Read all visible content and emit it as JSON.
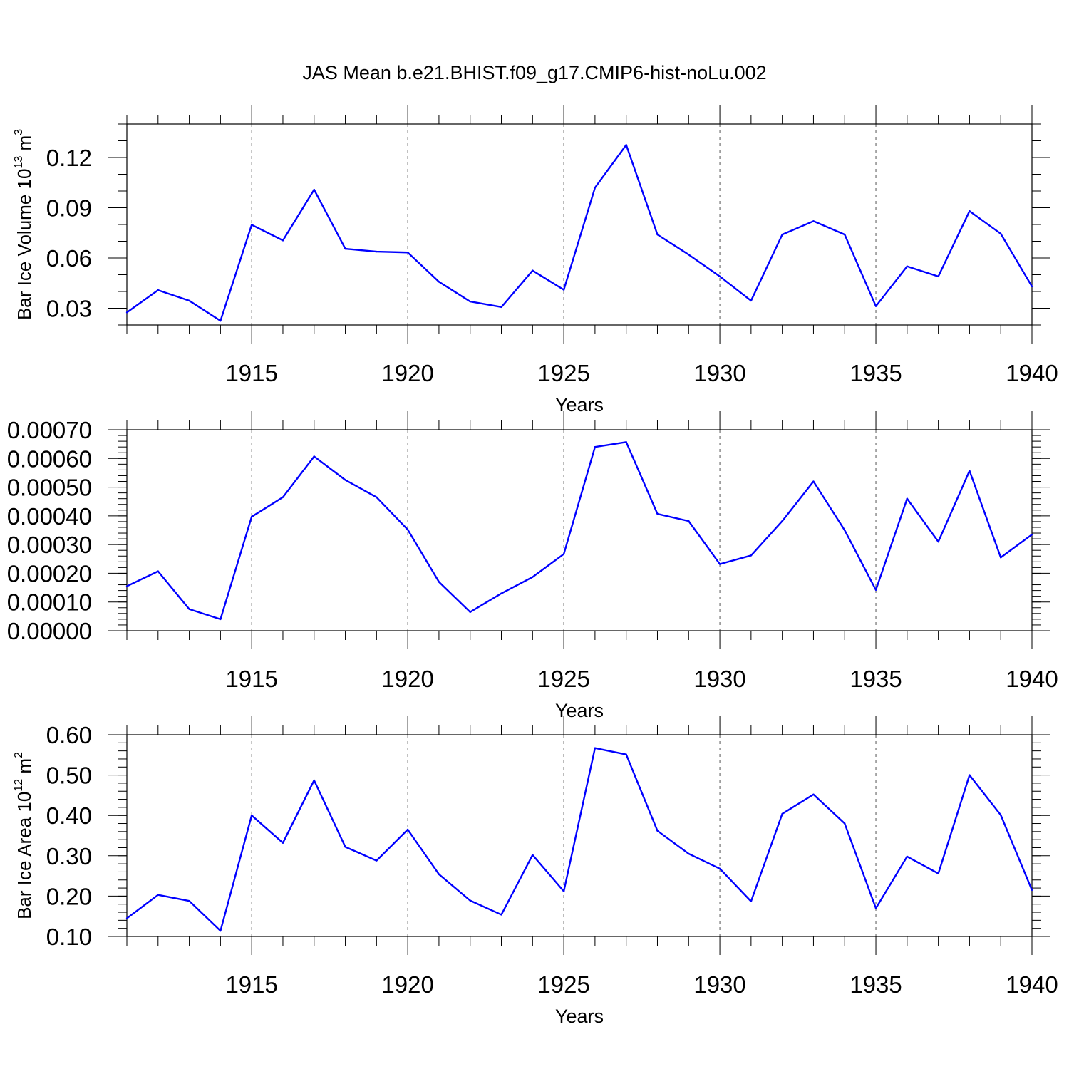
{
  "chart_data": {
    "type": "line",
    "title": "JAS Mean b.e21.BHIST.f09_g17.CMIP6-hist-noLu.002",
    "line_color": "#0000ff",
    "panels": [
      {
        "ylabel_main": "Bar Ice Volume 10",
        "ylabel_exp": "13",
        "ylabel_unit": " m",
        "ylabel_unit_exp": "3",
        "xlabel": "Years",
        "xlim": [
          1911,
          1940
        ],
        "ylim": [
          0.02,
          0.14
        ],
        "yticks": [
          0.03,
          0.06,
          0.09,
          0.12
        ],
        "ytick_labels": [
          "0.03",
          "0.06",
          "0.09",
          "0.12"
        ],
        "yminor_step": 0.01,
        "xticks": [
          1915,
          1920,
          1925,
          1930,
          1935,
          1940
        ],
        "xtick_labels": [
          "1915",
          "1920",
          "1925",
          "1930",
          "1935",
          "1940"
        ],
        "x": [
          1911,
          1912,
          1913,
          1914,
          1915,
          1916,
          1917,
          1918,
          1919,
          1920,
          1921,
          1922,
          1923,
          1924,
          1925,
          1926,
          1927,
          1928,
          1929,
          1930,
          1931,
          1932,
          1933,
          1934,
          1935,
          1936,
          1937,
          1938,
          1939,
          1940
        ],
        "values": [
          0.0275,
          0.0408,
          0.0345,
          0.0225,
          0.0798,
          0.0705,
          0.1008,
          0.0655,
          0.0638,
          0.0633,
          0.0458,
          0.034,
          0.0307,
          0.0525,
          0.041,
          0.102,
          0.1275,
          0.074,
          0.062,
          0.049,
          0.0345,
          0.074,
          0.082,
          0.074,
          0.0312,
          0.055,
          0.049,
          0.088,
          0.0745,
          0.043
        ]
      },
      {
        "ylabel_main": "",
        "xlabel": "Years",
        "xlim": [
          1911,
          1940
        ],
        "ylim": [
          0.0,
          0.0007
        ],
        "yticks": [
          0.0,
          0.0001,
          0.0002,
          0.0003,
          0.0004,
          0.0005,
          0.0006,
          0.0007
        ],
        "ytick_labels": [
          "0.00000",
          "0.00010",
          "0.00020",
          "0.00030",
          "0.00040",
          "0.00050",
          "0.00060",
          "0.00070"
        ],
        "yminor_step": 2e-05,
        "xticks": [
          1915,
          1920,
          1925,
          1930,
          1935,
          1940
        ],
        "xtick_labels": [
          "1915",
          "1920",
          "1925",
          "1930",
          "1935",
          "1940"
        ],
        "x": [
          1911,
          1912,
          1913,
          1914,
          1915,
          1916,
          1917,
          1918,
          1919,
          1920,
          1921,
          1922,
          1923,
          1924,
          1925,
          1926,
          1927,
          1928,
          1929,
          1930,
          1931,
          1932,
          1933,
          1934,
          1935,
          1936,
          1937,
          1938,
          1939,
          1940
        ],
        "values": [
          0.000155,
          0.000207,
          7.5e-05,
          4e-05,
          0.000397,
          0.000465,
          0.000607,
          0.000525,
          0.000465,
          0.000352,
          0.00017,
          6.5e-05,
          0.00013,
          0.000187,
          0.000267,
          0.00064,
          0.000657,
          0.000407,
          0.000382,
          0.000232,
          0.000262,
          0.000382,
          0.00052,
          0.00035,
          0.000142,
          0.00046,
          0.00031,
          0.000557,
          0.000255,
          0.000335
        ]
      },
      {
        "ylabel_main": "Bar Ice Area 10",
        "ylabel_exp": "12",
        "ylabel_unit": " m",
        "ylabel_unit_exp": "2",
        "xlabel": "Years",
        "xlim": [
          1911,
          1940
        ],
        "ylim": [
          0.1,
          0.6
        ],
        "yticks": [
          0.1,
          0.2,
          0.3,
          0.4,
          0.5,
          0.6
        ],
        "ytick_labels": [
          "0.10",
          "0.20",
          "0.30",
          "0.40",
          "0.50",
          "0.60"
        ],
        "yminor_step": 0.02,
        "xticks": [
          1915,
          1920,
          1925,
          1930,
          1935,
          1940
        ],
        "xtick_labels": [
          "1915",
          "1920",
          "1925",
          "1930",
          "1935",
          "1940"
        ],
        "x": [
          1911,
          1912,
          1913,
          1914,
          1915,
          1916,
          1917,
          1918,
          1919,
          1920,
          1921,
          1922,
          1923,
          1924,
          1925,
          1926,
          1927,
          1928,
          1929,
          1930,
          1931,
          1932,
          1933,
          1934,
          1935,
          1936,
          1937,
          1938,
          1939,
          1940
        ],
        "values": [
          0.145,
          0.203,
          0.188,
          0.114,
          0.4,
          0.332,
          0.487,
          0.322,
          0.288,
          0.365,
          0.254,
          0.189,
          0.154,
          0.302,
          0.212,
          0.567,
          0.551,
          0.362,
          0.305,
          0.268,
          0.187,
          0.404,
          0.452,
          0.38,
          0.17,
          0.298,
          0.256,
          0.5,
          0.401,
          0.215
        ]
      }
    ]
  }
}
